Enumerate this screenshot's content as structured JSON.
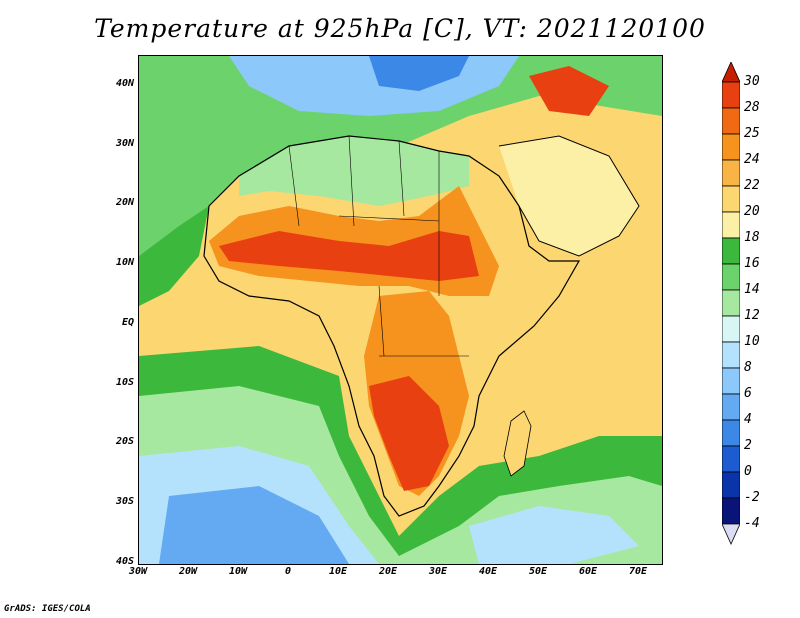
{
  "title": "Temperature at 925hPa [C], VT: 2021120100",
  "credit": "GrADS: IGES/COLA",
  "lat_labels": [
    "40N",
    "30N",
    "20N",
    "10N",
    "EQ",
    "10S",
    "20S",
    "30S",
    "40S"
  ],
  "lon_labels": [
    "30W",
    "20W",
    "10W",
    "0",
    "10E",
    "20E",
    "30E",
    "40E",
    "50E",
    "60E",
    "70E"
  ],
  "colorbar": {
    "labels": [
      "30",
      "28",
      "25",
      "24",
      "22",
      "20",
      "18",
      "16",
      "14",
      "12",
      "10",
      "8",
      "6",
      "4",
      "2",
      "0",
      "-2",
      "-4"
    ],
    "colors": [
      "#c81e00",
      "#e84010",
      "#f06a14",
      "#f6921e",
      "#f9b446",
      "#fbd671",
      "#fcefa6",
      "#3cb83c",
      "#6cd26c",
      "#a6e8a0",
      "#d8f6f4",
      "#b4e2fc",
      "#8cc8fa",
      "#64aaf2",
      "#3c88e6",
      "#1c5cd0",
      "#0a34aa",
      "#0a1478",
      "#dcdcf4"
    ]
  },
  "map": {
    "extent": {
      "lon_min": -30,
      "lon_max": 75,
      "lat_min": -40,
      "lat_max": 45
    },
    "ocean_color": "#fbd671",
    "land_hot_color": "#e84010"
  }
}
